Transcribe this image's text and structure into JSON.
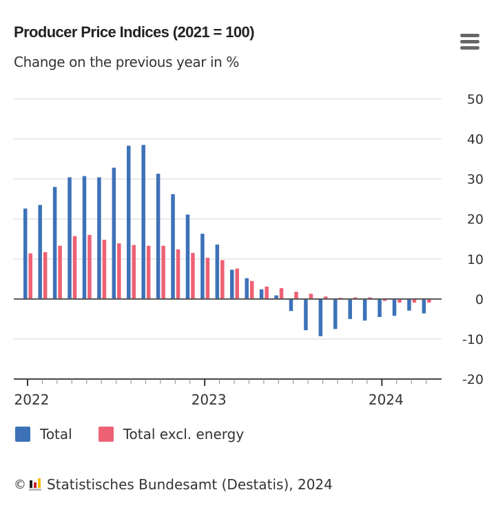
{
  "header": {
    "title": "Producer Price Indices (2021 = 100)",
    "subtitle": "Change on the previous year in %",
    "menu_icon": "hamburger-menu-icon"
  },
  "colors": {
    "total": "#3d72b8",
    "excl_energy": "#ee6174",
    "grid": "#e3e3e3",
    "axis": "#444444"
  },
  "chart_data": {
    "type": "bar",
    "title": "Producer Price Indices (2021 = 100)",
    "subtitle": "Change on the previous year in %",
    "xlabel": "",
    "ylabel": "",
    "ylim": [
      -20,
      50
    ],
    "yticks": [
      50,
      40,
      30,
      20,
      10,
      0,
      -10,
      -20
    ],
    "y_axis_position": "right",
    "grid": true,
    "legend_position": "bottom-left",
    "x_major_labels": [
      {
        "label": "2022",
        "index": 0
      },
      {
        "label": "2023",
        "index": 12
      },
      {
        "label": "2024",
        "index": 24
      }
    ],
    "categories": [
      "2022-01",
      "2022-02",
      "2022-03",
      "2022-04",
      "2022-05",
      "2022-06",
      "2022-07",
      "2022-08",
      "2022-09",
      "2022-10",
      "2022-11",
      "2022-12",
      "2023-01",
      "2023-02",
      "2023-03",
      "2023-04",
      "2023-05",
      "2023-06",
      "2023-07",
      "2023-08",
      "2023-09",
      "2023-10",
      "2023-11",
      "2023-12",
      "2024-01",
      "2024-02",
      "2024-03",
      "2024-04"
    ],
    "series": [
      {
        "name": "Total",
        "color": "#3d72b8",
        "values": [
          22.6,
          23.5,
          28.0,
          30.4,
          30.7,
          30.4,
          32.8,
          38.3,
          38.5,
          31.3,
          26.2,
          21.1,
          16.3,
          13.6,
          7.3,
          5.2,
          2.4,
          0.9,
          -3.0,
          -7.8,
          -9.3,
          -7.5,
          -5.0,
          -5.4,
          -4.5,
          -4.2,
          -2.9,
          -3.6
        ]
      },
      {
        "name": "Total excl. energy",
        "color": "#ee6174",
        "values": [
          11.4,
          11.7,
          13.3,
          15.7,
          16.0,
          14.8,
          13.9,
          13.5,
          13.3,
          13.3,
          12.4,
          11.5,
          10.3,
          9.7,
          7.6,
          4.5,
          3.1,
          2.7,
          1.8,
          1.3,
          0.6,
          0.3,
          0.4,
          0.4,
          -0.5,
          -0.9,
          -0.9,
          -0.9
        ]
      }
    ]
  },
  "legend": {
    "items": [
      {
        "label": "Total",
        "color": "#3d72b8"
      },
      {
        "label": "Total excl. energy",
        "color": "#ee6174"
      }
    ]
  },
  "credits": {
    "copyright_symbol": "©",
    "logo_icon": "destatis-logo-icon",
    "text": "Statistisches Bundesamt (Destatis), 2024"
  }
}
